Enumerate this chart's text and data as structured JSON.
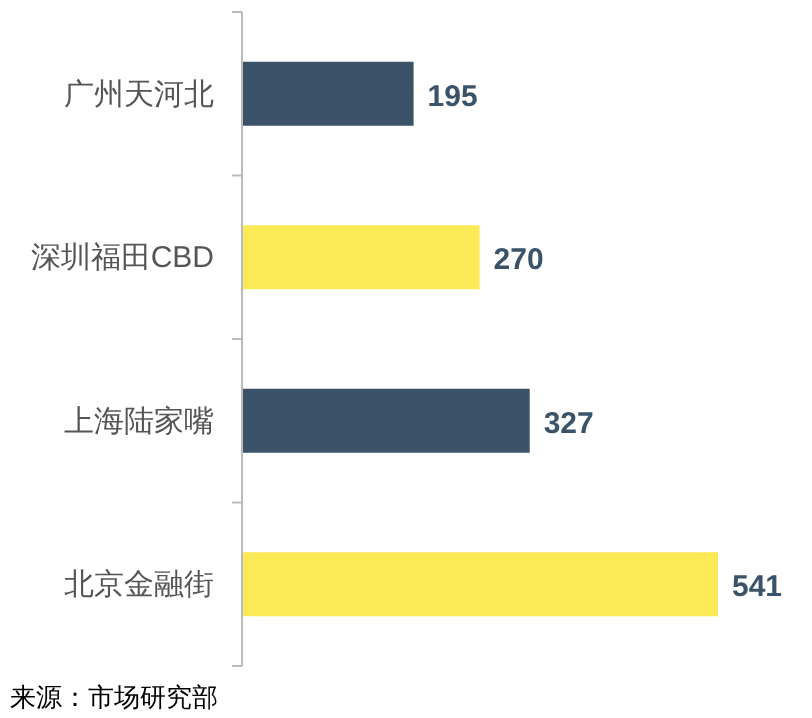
{
  "chart_data": {
    "type": "bar",
    "orientation": "horizontal",
    "categories": [
      "广州天河北",
      "深圳福田CBD",
      "上海陆家嘴",
      "北京金融街"
    ],
    "values": [
      195,
      270,
      327,
      541
    ],
    "colors": [
      "#3b5369",
      "#fbea55",
      "#3b5369",
      "#fbea55"
    ],
    "data_labels": true,
    "annotations": [
      "来源：市场研究部"
    ]
  }
}
